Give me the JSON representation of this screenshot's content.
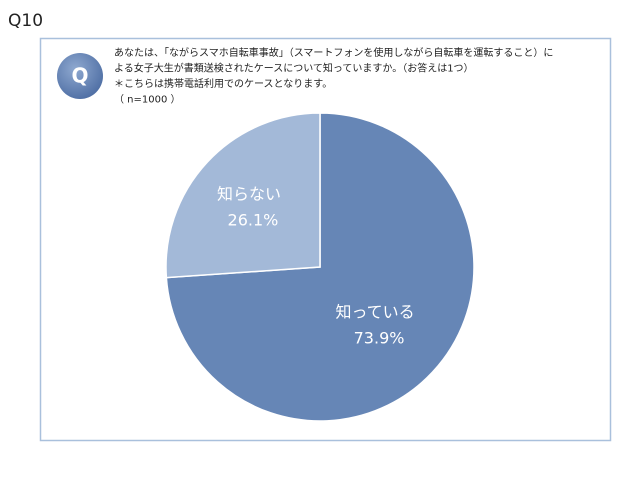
{
  "page_label": "Q10",
  "chart_data": {
    "type": "pie",
    "icon_label": "Q",
    "question": [
      "あなたは、「ながらスマホ自転車事故」（スマートフォンを使用しながら自転車を運転すること）に",
      "よる女子大生が書類送検されたケースについて知っていますか。（お答えは1つ）",
      "＊こちらは携帯電話利用でのケースとなります。",
      "（ n=1000 ）"
    ],
    "categories": [
      "知っている",
      "知らない"
    ],
    "values": [
      73.9,
      26.1
    ],
    "value_labels": [
      "73.9%",
      "26.1%"
    ],
    "colors": [
      "#6686b6",
      "#a3b9d8"
    ]
  }
}
